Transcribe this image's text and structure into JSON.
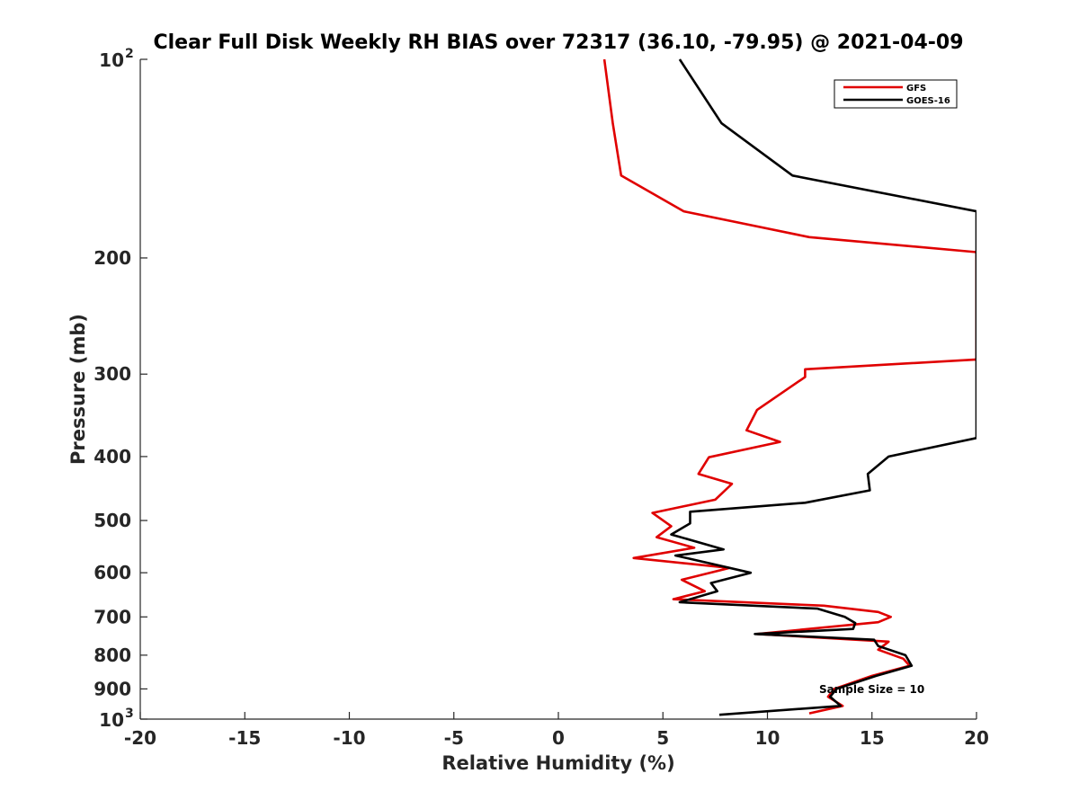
{
  "chart_data": {
    "type": "line",
    "title": "Clear Full Disk Weekly RH BIAS over 72317 (36.10, -79.95) @ 2021-04-09",
    "xlabel": "Relative Humidity (%)",
    "ylabel": "Pressure (mb)",
    "xlim": [
      -20,
      20
    ],
    "ylim": [
      100,
      1000
    ],
    "yscale": "log",
    "yreversed": true,
    "grid": false,
    "legend_position": "top-right",
    "x_ticks": [
      -20,
      -15,
      -10,
      -5,
      0,
      5,
      10,
      15,
      20
    ],
    "x_tick_labels": [
      "-20",
      "-15",
      "-10",
      "-5",
      "0",
      "5",
      "10",
      "15",
      "20"
    ],
    "y_ticks": [
      100,
      200,
      300,
      400,
      500,
      600,
      700,
      800,
      900,
      1000
    ],
    "y_tick_labels": [
      "",
      "200",
      "300",
      "400",
      "500",
      "600",
      "700",
      "800",
      "900",
      ""
    ],
    "y_power_labels": [
      {
        "value": 100,
        "base": "10",
        "exp": "2"
      },
      {
        "value": 1000,
        "base": "10",
        "exp": "3"
      }
    ],
    "annotation": "Sample Size = 10",
    "series": [
      {
        "name": "GFS",
        "color": "#e00000",
        "points": [
          [
            2.2,
            100
          ],
          [
            2.6,
            125
          ],
          [
            3.0,
            150
          ],
          [
            6.0,
            170
          ],
          [
            12.0,
            186
          ],
          [
            20.0,
            196
          ],
          [
            20.0,
            285
          ],
          [
            11.8,
            295
          ],
          [
            11.8,
            303
          ],
          [
            9.5,
            340
          ],
          [
            9.0,
            365
          ],
          [
            10.6,
            380
          ],
          [
            7.2,
            401
          ],
          [
            6.7,
            425
          ],
          [
            8.3,
            440
          ],
          [
            7.5,
            465
          ],
          [
            4.5,
            487
          ],
          [
            5.4,
            510
          ],
          [
            4.7,
            530
          ],
          [
            6.5,
            550
          ],
          [
            3.6,
            570
          ],
          [
            8.2,
            590
          ],
          [
            5.9,
            615
          ],
          [
            7.0,
            640
          ],
          [
            5.5,
            658
          ],
          [
            12.7,
            673
          ],
          [
            15.3,
            688
          ],
          [
            15.9,
            700
          ],
          [
            15.3,
            713
          ],
          [
            9.5,
            743
          ],
          [
            15.8,
            763
          ],
          [
            15.3,
            785
          ],
          [
            16.5,
            810
          ],
          [
            16.8,
            830
          ],
          [
            15.0,
            860
          ],
          [
            13.2,
            900
          ],
          [
            12.9,
            925
          ],
          [
            13.6,
            955
          ],
          [
            12.0,
            980
          ]
        ]
      },
      {
        "name": "GOES-16",
        "color": "#000000",
        "points": [
          [
            5.8,
            100
          ],
          [
            7.8,
            125
          ],
          [
            11.2,
            150
          ],
          [
            20.0,
            170
          ],
          [
            20.0,
            375
          ],
          [
            15.8,
            400
          ],
          [
            14.8,
            425
          ],
          [
            14.9,
            450
          ],
          [
            11.8,
            470
          ],
          [
            6.3,
            485
          ],
          [
            6.3,
            505
          ],
          [
            5.4,
            525
          ],
          [
            7.9,
            553
          ],
          [
            5.6,
            565
          ],
          [
            9.2,
            600
          ],
          [
            7.3,
            622
          ],
          [
            7.6,
            640
          ],
          [
            5.8,
            665
          ],
          [
            12.4,
            680
          ],
          [
            13.7,
            700
          ],
          [
            14.2,
            715
          ],
          [
            14.1,
            730
          ],
          [
            9.4,
            743
          ],
          [
            15.1,
            758
          ],
          [
            15.3,
            775
          ],
          [
            16.6,
            800
          ],
          [
            16.9,
            830
          ],
          [
            15.2,
            860
          ],
          [
            13.3,
            900
          ],
          [
            13.0,
            925
          ],
          [
            13.5,
            955
          ],
          [
            7.7,
            985
          ]
        ]
      }
    ]
  }
}
